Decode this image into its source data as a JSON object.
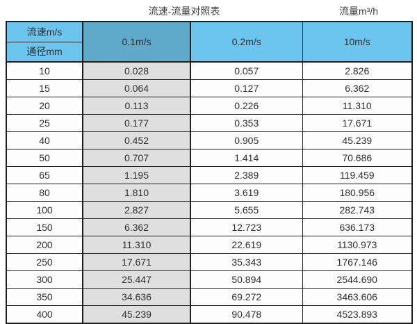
{
  "page": {
    "title_caption": "流速-流量对照表",
    "unit_caption": "流量m³/h"
  },
  "colors": {
    "header_blue": "#6cc5ee",
    "header_dark_blue": "#5fa9c9",
    "grey_column": "#dfdfdf",
    "cell_white": "#fdfdfd",
    "border": "#1f1f1f",
    "text": "#2f2f2f"
  },
  "chart_data": {
    "type": "table",
    "title": "流速-流量对照表",
    "unit_label": "流量m³/h",
    "corner": {
      "top_label": "流速m/s",
      "bottom_label": "通径mm"
    },
    "columns": [
      "0.1m/s",
      "0.2m/s",
      "10m/s"
    ],
    "rows": [
      {
        "diameter_mm": "10",
        "values": [
          "0.028",
          "0.057",
          "2.826"
        ]
      },
      {
        "diameter_mm": "15",
        "values": [
          "0.064",
          "0.127",
          "6.362"
        ]
      },
      {
        "diameter_mm": "20",
        "values": [
          "0.113",
          "0.226",
          "11.310"
        ]
      },
      {
        "diameter_mm": "25",
        "values": [
          "0.177",
          "0.353",
          "17.671"
        ]
      },
      {
        "diameter_mm": "40",
        "values": [
          "0.452",
          "0.905",
          "45.239"
        ]
      },
      {
        "diameter_mm": "50",
        "values": [
          "0.707",
          "1.414",
          "70.686"
        ]
      },
      {
        "diameter_mm": "65",
        "values": [
          "1.195",
          "2.389",
          "119.459"
        ]
      },
      {
        "diameter_mm": "80",
        "values": [
          "1.810",
          "3.619",
          "180.956"
        ]
      },
      {
        "diameter_mm": "100",
        "values": [
          "2.827",
          "5.655",
          "282.743"
        ]
      },
      {
        "diameter_mm": "150",
        "values": [
          "6.362",
          "12.723",
          "636.173"
        ]
      },
      {
        "diameter_mm": "200",
        "values": [
          "11.310",
          "22.619",
          "1130.973"
        ]
      },
      {
        "diameter_mm": "250",
        "values": [
          "17.671",
          "35.343",
          "1767.146"
        ]
      },
      {
        "diameter_mm": "300",
        "values": [
          "25.447",
          "50.894",
          "2544.690"
        ]
      },
      {
        "diameter_mm": "350",
        "values": [
          "34.636",
          "69.272",
          "3463.606"
        ]
      },
      {
        "diameter_mm": "400",
        "values": [
          "45.239",
          "90.478",
          "4523.893"
        ]
      }
    ]
  }
}
